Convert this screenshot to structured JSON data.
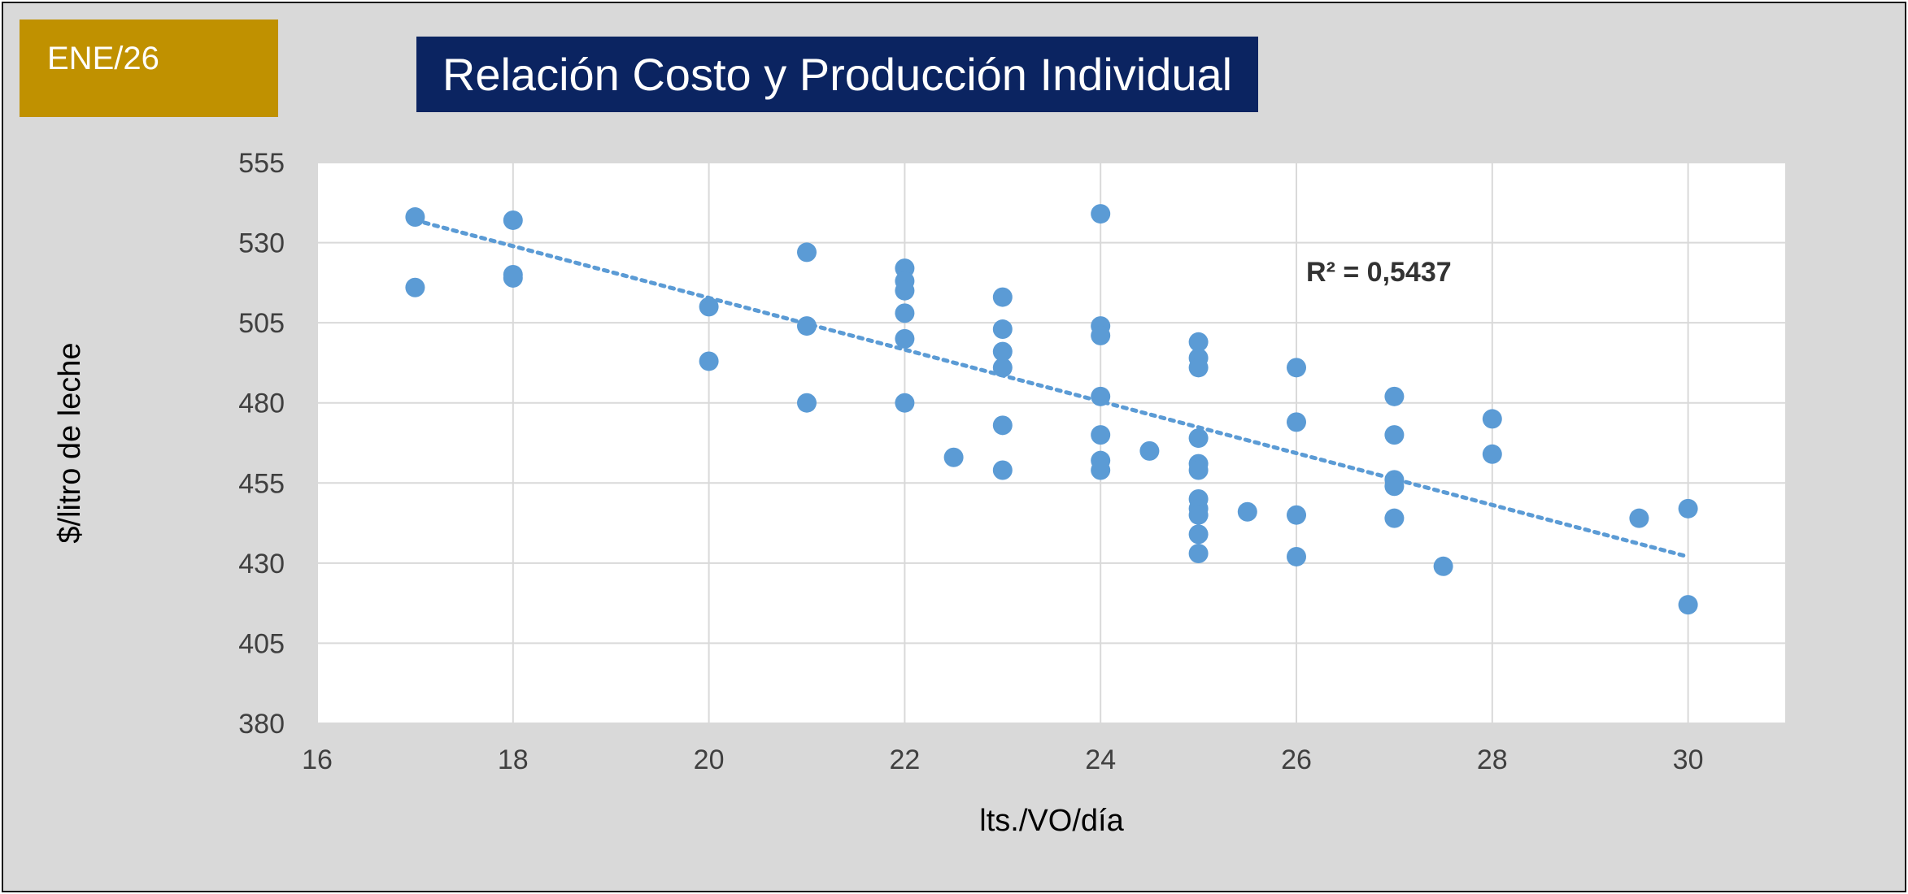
{
  "badge": {
    "label": "ENE/26"
  },
  "colors": {
    "background": "#d9d9d9",
    "badge": "#c09100",
    "title_bg": "#0b2461",
    "marker": "#5b9bd5",
    "trendline": "#5b9bd5"
  },
  "chart_data": {
    "type": "scatter",
    "title": "Relación Costo y Producción Individual",
    "xlabel": "lts./VO/día",
    "ylabel": "$/litro de leche",
    "xlim": [
      16,
      31
    ],
    "ylim": [
      380,
      555
    ],
    "xticks": [
      16,
      18,
      20,
      22,
      24,
      26,
      28,
      30
    ],
    "yticks": [
      380,
      405,
      430,
      455,
      480,
      505,
      530,
      555
    ],
    "grid": true,
    "legend": "none",
    "trendline": {
      "type": "linear",
      "x_range": [
        17,
        30
      ],
      "y_start": 537,
      "y_end": 432,
      "style": "dotted"
    },
    "annotations": [
      {
        "text": "R² = 0,5437",
        "x": 26.1,
        "y": 518
      }
    ],
    "points": [
      {
        "x": 17,
        "y": 538
      },
      {
        "x": 17,
        "y": 516
      },
      {
        "x": 18,
        "y": 537
      },
      {
        "x": 18,
        "y": 520
      },
      {
        "x": 18,
        "y": 519
      },
      {
        "x": 20,
        "y": 510
      },
      {
        "x": 20,
        "y": 493
      },
      {
        "x": 21,
        "y": 527
      },
      {
        "x": 21,
        "y": 504
      },
      {
        "x": 21,
        "y": 480
      },
      {
        "x": 22,
        "y": 522
      },
      {
        "x": 22,
        "y": 518
      },
      {
        "x": 22,
        "y": 515
      },
      {
        "x": 22,
        "y": 508
      },
      {
        "x": 22,
        "y": 500
      },
      {
        "x": 22,
        "y": 480
      },
      {
        "x": 22.5,
        "y": 463
      },
      {
        "x": 23,
        "y": 513
      },
      {
        "x": 23,
        "y": 503
      },
      {
        "x": 23,
        "y": 496
      },
      {
        "x": 23,
        "y": 491
      },
      {
        "x": 23,
        "y": 473
      },
      {
        "x": 23,
        "y": 459
      },
      {
        "x": 24,
        "y": 539
      },
      {
        "x": 24,
        "y": 504
      },
      {
        "x": 24,
        "y": 501
      },
      {
        "x": 24,
        "y": 482
      },
      {
        "x": 24,
        "y": 470
      },
      {
        "x": 24,
        "y": 462
      },
      {
        "x": 24,
        "y": 459
      },
      {
        "x": 24.5,
        "y": 465
      },
      {
        "x": 25,
        "y": 499
      },
      {
        "x": 25,
        "y": 494
      },
      {
        "x": 25,
        "y": 491
      },
      {
        "x": 25,
        "y": 469
      },
      {
        "x": 25,
        "y": 461
      },
      {
        "x": 25,
        "y": 459
      },
      {
        "x": 25,
        "y": 450
      },
      {
        "x": 25,
        "y": 447
      },
      {
        "x": 25,
        "y": 445
      },
      {
        "x": 25,
        "y": 439
      },
      {
        "x": 25,
        "y": 433
      },
      {
        "x": 25.5,
        "y": 446
      },
      {
        "x": 26,
        "y": 491
      },
      {
        "x": 26,
        "y": 474
      },
      {
        "x": 26,
        "y": 445
      },
      {
        "x": 26,
        "y": 432
      },
      {
        "x": 27,
        "y": 482
      },
      {
        "x": 27,
        "y": 470
      },
      {
        "x": 27,
        "y": 456
      },
      {
        "x": 27,
        "y": 454
      },
      {
        "x": 27,
        "y": 444
      },
      {
        "x": 27.5,
        "y": 429
      },
      {
        "x": 28,
        "y": 475
      },
      {
        "x": 28,
        "y": 464
      },
      {
        "x": 29.5,
        "y": 444
      },
      {
        "x": 30,
        "y": 447
      },
      {
        "x": 30,
        "y": 417
      }
    ]
  }
}
